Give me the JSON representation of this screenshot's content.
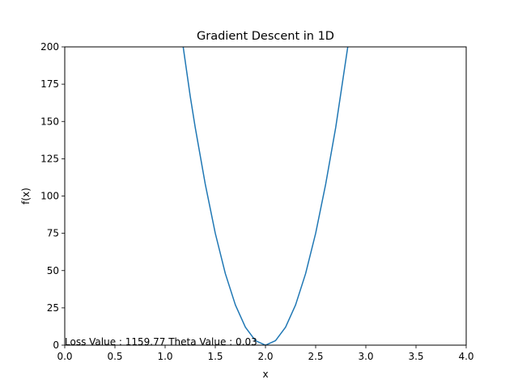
{
  "chart_data": {
    "type": "line",
    "title": "Gradient Descent in 1D",
    "xlabel": "x",
    "ylabel": "f(x)",
    "xlim": [
      0.0,
      4.0
    ],
    "ylim": [
      0,
      200
    ],
    "xticks": [
      "0.0",
      "0.5",
      "1.0",
      "1.5",
      "2.0",
      "2.5",
      "3.0",
      "3.5",
      "4.0"
    ],
    "yticks": [
      "0",
      "25",
      "50",
      "75",
      "100",
      "125",
      "150",
      "175",
      "200"
    ],
    "grid": false,
    "series": [
      {
        "color": "#1f77b4",
        "x": [
          1.18,
          1.25,
          1.3,
          1.4,
          1.5,
          1.6,
          1.7,
          1.8,
          1.9,
          2.0,
          2.1,
          2.2,
          2.3,
          2.4,
          2.5,
          2.6,
          2.7,
          2.82
        ],
        "y": [
          200,
          167,
          146,
          108,
          75,
          48,
          27,
          12,
          3,
          0,
          3,
          12,
          27,
          48,
          75,
          108,
          146,
          200
        ]
      }
    ],
    "annotation": "Loss Value : 1159.77 Theta Value : 0.03"
  }
}
